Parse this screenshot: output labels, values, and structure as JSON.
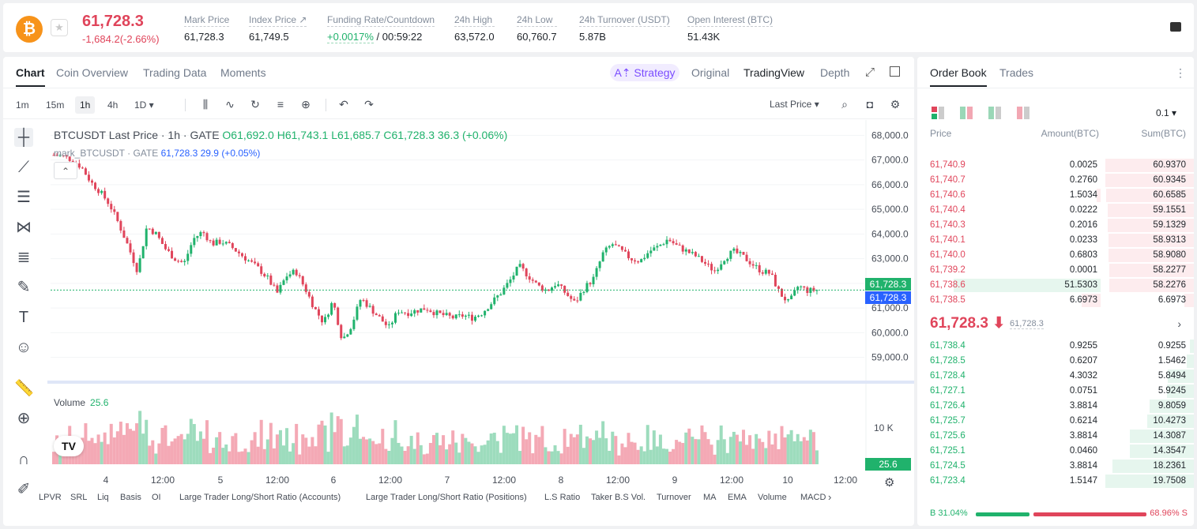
{
  "header": {
    "coin_symbol": "₿",
    "price": "61,728.3",
    "change": "-1,684.2(-2.66%)",
    "stats": [
      {
        "label": "Mark Price",
        "value": "61,728.3"
      },
      {
        "label": "Index Price ↗",
        "value": "61,749.5"
      },
      {
        "label": "Funding Rate/Countdown",
        "rate": "+0.0017%",
        "countdown": "/ 00:59:22"
      },
      {
        "label": "24h High",
        "value": "63,572.0"
      },
      {
        "label": "24h Low",
        "value": "60,760.7"
      },
      {
        "label": "24h Turnover (USDT)",
        "value": "5.87B"
      },
      {
        "label": "Open Interest (BTC)",
        "value": "51.43K"
      }
    ]
  },
  "chart_tabs": [
    "Chart",
    "Coin Overview",
    "Trading Data",
    "Moments"
  ],
  "strategy_label": "A⇡ Strategy",
  "view_tabs": [
    "Original",
    "TradingView",
    "Depth"
  ],
  "timeframes": [
    "1m",
    "15m",
    "1h",
    "4h",
    "1D ▾"
  ],
  "last_price_label": "Last Price ▾",
  "legend": {
    "main": "BTCUSDT Last Price · 1h · GATE",
    "o": "O61,692.0",
    "h": "H61,743.1",
    "l": "L61,685.7",
    "c": "C61,728.3",
    "chg": "36.3 (+0.06%)",
    "mark": "mark_BTCUSDT · GATE",
    "mark_val": "61,728.3  29.9 (+0.05%)"
  },
  "volume_label": "Volume",
  "volume_value": "25.6",
  "tv_logo": "TV",
  "price_tags": {
    "green": "61,728.3",
    "blue": "61,728.3",
    "vol": "25.6"
  },
  "indicators": [
    "LPVR",
    "SRL",
    "Liq",
    "Basis",
    "OI",
    "Large Trader Long/Short Ratio (Accounts)",
    "Large Trader Long/Short Ratio (Positions)",
    "L.S Ratio",
    "Taker B.S Vol.",
    "Turnover",
    "MA",
    "EMA",
    "Volume",
    "MACD"
  ],
  "colors": {
    "up": "#20b26c",
    "down": "#e0455b",
    "mark_line": "#2962ff"
  },
  "chart_data": {
    "type": "candlestick",
    "title": "BTCUSDT Last Price · 1h · GATE",
    "y_ticks": [
      68000,
      67000,
      66000,
      65000,
      64000,
      63000,
      62000,
      61000,
      60000,
      59000
    ],
    "y_tick_labels": [
      "68,000.0",
      "67,000.0",
      "66,000.0",
      "65,000.0",
      "64,000.0",
      "63,000.0",
      "62,000.0",
      "61,000.0",
      "60,000.0",
      "59,000.0"
    ],
    "x_tick_labels": [
      "4",
      "12:00",
      "5",
      "12:00",
      "6",
      "12:00",
      "7",
      "12:00",
      "8",
      "12:00",
      "9",
      "12:00",
      "10",
      "12:00"
    ],
    "volume_tick_label": "10 K",
    "last_price": 61728.3,
    "close_path": [
      67200,
      67150,
      67000,
      66700,
      66100,
      65700,
      65200,
      64400,
      63500,
      62500,
      64300,
      64000,
      63400,
      63000,
      62800,
      63800,
      64100,
      63600,
      63700,
      63500,
      63200,
      62900,
      62600,
      62200,
      61600,
      62300,
      62500,
      61800,
      61000,
      60400,
      61300,
      59700,
      60300,
      61400,
      61000,
      60600,
      60200,
      60900,
      60800,
      60900,
      61000,
      60800,
      60700,
      60600,
      60700,
      60600,
      60800,
      61200,
      61600,
      62100,
      62700,
      62300,
      61900,
      61700,
      62000,
      61600,
      61200,
      61800,
      62200,
      63200,
      63600,
      63300,
      63000,
      62900,
      63300,
      63500,
      63800,
      63500,
      63300,
      63100,
      62800,
      62500,
      63000,
      63300,
      63100,
      62800,
      62500,
      62400,
      61600,
      61200,
      61900,
      61700,
      61728
    ],
    "volume_note": "volume bars per candle, max around 28K"
  },
  "orderbook": {
    "tabs": [
      "Order Book",
      "Trades"
    ],
    "precision": "0.1 ▾",
    "headers": [
      "Price",
      "Amount(BTC)",
      "Sum(BTC)"
    ],
    "asks": [
      {
        "price": "61,740.9",
        "amount": "0.0025",
        "sum": "60.9370"
      },
      {
        "price": "61,740.7",
        "amount": "0.2760",
        "sum": "60.9345"
      },
      {
        "price": "61,740.6",
        "amount": "1.5034",
        "sum": "60.6585"
      },
      {
        "price": "61,740.4",
        "amount": "0.0222",
        "sum": "59.1551"
      },
      {
        "price": "61,740.3",
        "amount": "0.2016",
        "sum": "59.1329"
      },
      {
        "price": "61,740.1",
        "amount": "0.0233",
        "sum": "58.9313"
      },
      {
        "price": "61,740.0",
        "amount": "0.6803",
        "sum": "58.9080"
      },
      {
        "price": "61,739.2",
        "amount": "0.0001",
        "sum": "58.2277"
      },
      {
        "price": "61,738.6",
        "amount": "51.5303",
        "sum": "58.2276"
      },
      {
        "price": "61,738.5",
        "amount": "6.6973",
        "sum": "6.6973"
      }
    ],
    "mid_price": "61,728.3 ⬇",
    "mid_mark": "61,728.3",
    "bids": [
      {
        "price": "61,738.4",
        "amount": "0.9255",
        "sum": "0.9255"
      },
      {
        "price": "61,728.5",
        "amount": "0.6207",
        "sum": "1.5462"
      },
      {
        "price": "61,728.4",
        "amount": "4.3032",
        "sum": "5.8494"
      },
      {
        "price": "61,727.1",
        "amount": "0.0751",
        "sum": "5.9245"
      },
      {
        "price": "61,726.4",
        "amount": "3.8814",
        "sum": "9.8059"
      },
      {
        "price": "61,725.7",
        "amount": "0.6214",
        "sum": "10.4273"
      },
      {
        "price": "61,725.6",
        "amount": "3.8814",
        "sum": "14.3087"
      },
      {
        "price": "61,725.1",
        "amount": "0.0460",
        "sum": "14.3547"
      },
      {
        "price": "61,724.5",
        "amount": "3.8814",
        "sum": "18.2361"
      },
      {
        "price": "61,723.4",
        "amount": "1.5147",
        "sum": "19.7508"
      }
    ],
    "buy_ratio": "B 31.04%",
    "sell_ratio": "68.96% S"
  }
}
